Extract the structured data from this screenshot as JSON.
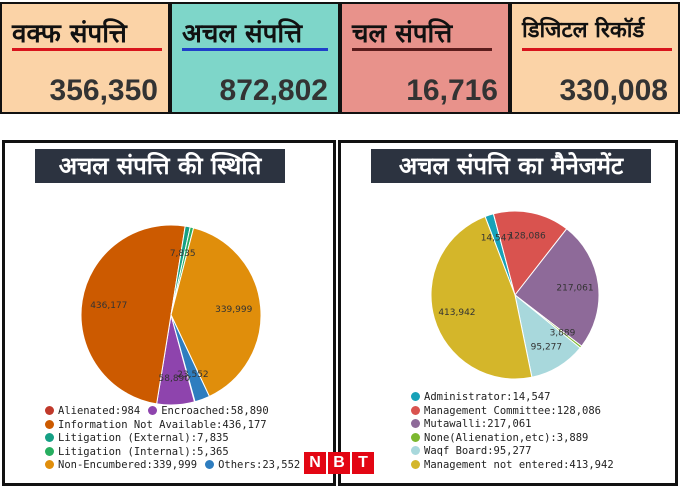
{
  "cards": [
    {
      "title": "वक्फ संपत्ति",
      "value": "356,350",
      "bg": "#fbd3a7",
      "line": "#d8141c"
    },
    {
      "title": "अचल संपत्ति",
      "value": "872,802",
      "bg": "#7ed6c9",
      "line": "#1f3fc9"
    },
    {
      "title": "चल संपत्ति",
      "value": "16,716",
      "bg": "#e8928b",
      "line": "#5b1c1c"
    },
    {
      "title": "डिजिटल रिकॉर्ड",
      "value": "330,008",
      "bg": "#fbd3a7",
      "line": "#d8141c"
    }
  ],
  "left_panel": {
    "banner": "अचल संपत्ति की स्थिति"
  },
  "right_panel": {
    "banner": "अचल संपत्ति का मैनेजमेंट"
  },
  "chart_data": [
    {
      "type": "pie",
      "title": "अचल संपत्ति की स्थिति",
      "slices": [
        {
          "label": "Alienated",
          "value": 984,
          "color": "#c0392b",
          "legend": "Alienated:984",
          "data_label": ""
        },
        {
          "label": "Encroached",
          "value": 58890,
          "color": "#8e44ad",
          "legend": "Encroached:58,890",
          "data_label": "58,890"
        },
        {
          "label": "Information Not Available",
          "value": 436177,
          "color": "#cc5a00",
          "legend": "Information Not Available:436,177",
          "data_label": "436,177"
        },
        {
          "label": "Litigation (External)",
          "value": 7835,
          "color": "#16a085",
          "legend": "Litigation (External):7,835",
          "data_label": "7,835"
        },
        {
          "label": "Litigation (Internal)",
          "value": 5365,
          "color": "#27ae60",
          "legend": "Litigation (Internal):5,365",
          "data_label": ""
        },
        {
          "label": "Non-Encumbered",
          "value": 339999,
          "color": "#e08e0b",
          "legend": "Non-Encumbered:339,999",
          "data_label": "339,999"
        },
        {
          "label": "Others",
          "value": 23552,
          "color": "#2e7dbf",
          "legend": "Others:23,552",
          "data_label": "23,552"
        }
      ]
    },
    {
      "type": "pie",
      "title": "अचल संपत्ति का मैनेजमेंट",
      "slices": [
        {
          "label": "Administrator",
          "value": 14547,
          "color": "#17a2b8",
          "legend": "Administrator:14,547",
          "data_label": "14,547"
        },
        {
          "label": "Management Committee",
          "value": 128086,
          "color": "#d9534f",
          "legend": "Management Committee:128,086",
          "data_label": "128,086"
        },
        {
          "label": "Mutawalli",
          "value": 217061,
          "color": "#8e6a99",
          "legend": "Mutawalli:217,061",
          "data_label": "217,061"
        },
        {
          "label": "None(Alienation,etc)",
          "value": 3889,
          "color": "#7cb82f",
          "legend": "None(Alienation,etc):3,889",
          "data_label": "3,889"
        },
        {
          "label": "Waqf Board",
          "value": 95277,
          "color": "#a8d8dc",
          "legend": "Waqf Board:95,277",
          "data_label": "95,277"
        },
        {
          "label": "Management not entered",
          "value": 413942,
          "color": "#d4b62a",
          "legend": "Management not entered:413,942",
          "data_label": "413,942"
        }
      ]
    }
  ],
  "logo": {
    "letters": [
      "N",
      "B",
      "T"
    ]
  }
}
